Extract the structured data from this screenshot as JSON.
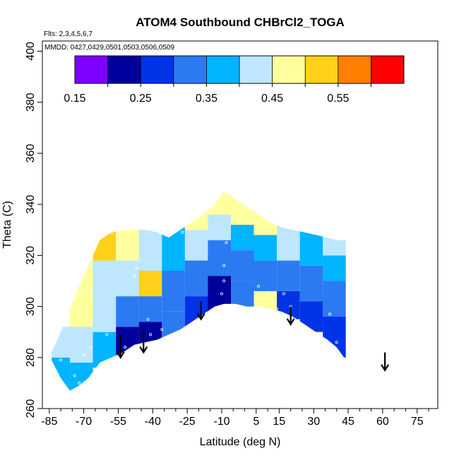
{
  "chart_data": {
    "type": "heatmap",
    "title": "ATOM4 Southbound CHBrCl2_TOGA",
    "flights_label": "Flts: 2,3,4,5,6,7",
    "dates_label": "MMDD: 0427,0429,0501,0503,0506,0509",
    "xlabel": "Latitude (deg N)",
    "ylabel": "Theta (C)",
    "xlim": [
      -88,
      84
    ],
    "ylim": [
      260,
      404
    ],
    "x_ticks": [
      -85,
      -70,
      -55,
      -40,
      -25,
      -10,
      5,
      15,
      30,
      45,
      60,
      75
    ],
    "x_minor_ticks": [
      -80,
      -75,
      -65,
      -60,
      -50,
      -45,
      -35,
      -30,
      -20,
      -15,
      -5,
      0,
      10,
      20,
      25,
      35,
      40,
      50,
      55,
      65,
      70,
      80
    ],
    "y_ticks": [
      260,
      280,
      300,
      320,
      340,
      360,
      380,
      400
    ],
    "colorbar": {
      "min": 0.15,
      "max": 0.65,
      "ticks": [
        0.15,
        0.25,
        0.35,
        0.45,
        0.55
      ],
      "tick_labels": [
        "0.15",
        "0.25",
        "0.35",
        "0.45",
        "0.55"
      ],
      "boundaries": [
        0.15,
        0.2,
        0.25,
        0.3,
        0.35,
        0.4,
        0.45,
        0.5,
        0.55,
        0.6,
        0.65
      ],
      "colors": [
        "#7f00ff",
        "#00009c",
        "#0033e6",
        "#2b7af2",
        "#00b4ff",
        "#bfe6ff",
        "#ffff9e",
        "#ffd11a",
        "#ff7f00",
        "#ff0000",
        "#9e1a1a"
      ]
    },
    "field_stops": [
      {
        "lat": -84,
        "bottom": 279,
        "top": 282
      },
      {
        "lat": -80,
        "bottom": 272,
        "top": 290
      },
      {
        "lat": -76,
        "bottom": 267,
        "top": 299
      },
      {
        "lat": -72,
        "bottom": 269,
        "top": 308
      },
      {
        "lat": -68,
        "bottom": 272,
        "top": 316
      },
      {
        "lat": -63,
        "bottom": 278,
        "top": 326
      },
      {
        "lat": -58,
        "bottom": 280,
        "top": 329
      },
      {
        "lat": -53,
        "bottom": 282,
        "top": 330
      },
      {
        "lat": -48,
        "bottom": 285,
        "top": 330
      },
      {
        "lat": -43,
        "bottom": 286,
        "top": 330
      },
      {
        "lat": -38,
        "bottom": 287,
        "top": 329
      },
      {
        "lat": -33,
        "bottom": 289,
        "top": 327
      },
      {
        "lat": -28,
        "bottom": 291,
        "top": 330
      },
      {
        "lat": -23,
        "bottom": 294,
        "top": 333
      },
      {
        "lat": -18,
        "bottom": 297,
        "top": 336
      },
      {
        "lat": -13,
        "bottom": 300,
        "top": 340
      },
      {
        "lat": -9,
        "bottom": 301,
        "top": 345
      },
      {
        "lat": -4,
        "bottom": 301,
        "top": 342
      },
      {
        "lat": 1,
        "bottom": 300,
        "top": 339
      },
      {
        "lat": 6,
        "bottom": 300,
        "top": 336
      },
      {
        "lat": 11,
        "bottom": 299,
        "top": 333
      },
      {
        "lat": 16,
        "bottom": 298,
        "top": 331
      },
      {
        "lat": 21,
        "bottom": 296,
        "top": 330
      },
      {
        "lat": 26,
        "bottom": 293,
        "top": 329
      },
      {
        "lat": 31,
        "bottom": 290,
        "top": 328
      },
      {
        "lat": 36,
        "bottom": 287,
        "top": 327
      },
      {
        "lat": 40,
        "bottom": 284,
        "top": 326
      },
      {
        "lat": 44,
        "bottom": 279,
        "top": 326
      }
    ],
    "field_cells": [
      {
        "lat": [
          -86,
          -76
        ],
        "theta": [
          266,
          280
        ],
        "value": 0.38
      },
      {
        "lat": [
          -86,
          -76
        ],
        "theta": [
          280,
          292
        ],
        "value": 0.42
      },
      {
        "lat": [
          -76,
          -66
        ],
        "theta": [
          266,
          278
        ],
        "value": 0.36
      },
      {
        "lat": [
          -76,
          -66
        ],
        "theta": [
          278,
          292
        ],
        "value": 0.4
      },
      {
        "lat": [
          -76,
          -66
        ],
        "theta": [
          292,
          306
        ],
        "value": 0.47
      },
      {
        "lat": [
          -76,
          -66
        ],
        "theta": [
          306,
          318
        ],
        "value": 0.46
      },
      {
        "lat": [
          -66,
          -56
        ],
        "theta": [
          276,
          290
        ],
        "value": 0.36
      },
      {
        "lat": [
          -66,
          -56
        ],
        "theta": [
          290,
          304
        ],
        "value": 0.44
      },
      {
        "lat": [
          -66,
          -56
        ],
        "theta": [
          304,
          318
        ],
        "value": 0.42
      },
      {
        "lat": [
          -66,
          -56
        ],
        "theta": [
          318,
          330
        ],
        "value": 0.51
      },
      {
        "lat": [
          -56,
          -46
        ],
        "theta": [
          280,
          292
        ],
        "value": 0.22
      },
      {
        "lat": [
          -56,
          -46
        ],
        "theta": [
          292,
          304
        ],
        "value": 0.3
      },
      {
        "lat": [
          -56,
          -46
        ],
        "theta": [
          304,
          318
        ],
        "value": 0.44
      },
      {
        "lat": [
          -56,
          -46
        ],
        "theta": [
          318,
          331
        ],
        "value": 0.47
      },
      {
        "lat": [
          -46,
          -36
        ],
        "theta": [
          284,
          294
        ],
        "value": 0.22
      },
      {
        "lat": [
          -46,
          -36
        ],
        "theta": [
          294,
          304
        ],
        "value": 0.31
      },
      {
        "lat": [
          -46,
          -36
        ],
        "theta": [
          304,
          314
        ],
        "value": 0.52
      },
      {
        "lat": [
          -46,
          -36
        ],
        "theta": [
          314,
          331
        ],
        "value": 0.4
      },
      {
        "lat": [
          -36,
          -26
        ],
        "theta": [
          286,
          298
        ],
        "value": 0.3
      },
      {
        "lat": [
          -36,
          -26
        ],
        "theta": [
          298,
          314
        ],
        "value": 0.33
      },
      {
        "lat": [
          -36,
          -26
        ],
        "theta": [
          314,
          331
        ],
        "value": 0.38
      },
      {
        "lat": [
          -26,
          -16
        ],
        "theta": [
          292,
          304
        ],
        "value": 0.28
      },
      {
        "lat": [
          -26,
          -16
        ],
        "theta": [
          304,
          318
        ],
        "value": 0.32
      },
      {
        "lat": [
          -26,
          -16
        ],
        "theta": [
          318,
          330
        ],
        "value": 0.4
      },
      {
        "lat": [
          -26,
          -16
        ],
        "theta": [
          330,
          338
        ],
        "value": 0.46
      },
      {
        "lat": [
          -16,
          -6
        ],
        "theta": [
          298,
          312
        ],
        "value": 0.2
      },
      {
        "lat": [
          -16,
          -6
        ],
        "theta": [
          312,
          326
        ],
        "value": 0.3
      },
      {
        "lat": [
          -16,
          -6
        ],
        "theta": [
          326,
          336
        ],
        "value": 0.4
      },
      {
        "lat": [
          -16,
          -6
        ],
        "theta": [
          336,
          346
        ],
        "value": 0.47
      },
      {
        "lat": [
          -6,
          4
        ],
        "theta": [
          299,
          310
        ],
        "value": 0.33
      },
      {
        "lat": [
          -6,
          4
        ],
        "theta": [
          310,
          322
        ],
        "value": 0.3
      },
      {
        "lat": [
          -6,
          4
        ],
        "theta": [
          322,
          332
        ],
        "value": 0.36
      },
      {
        "lat": [
          -6,
          4
        ],
        "theta": [
          332,
          343
        ],
        "value": 0.48
      },
      {
        "lat": [
          4,
          14
        ],
        "theta": [
          298,
          306
        ],
        "value": 0.47
      },
      {
        "lat": [
          4,
          14
        ],
        "theta": [
          306,
          318
        ],
        "value": 0.34
      },
      {
        "lat": [
          4,
          14
        ],
        "theta": [
          318,
          328
        ],
        "value": 0.37
      },
      {
        "lat": [
          4,
          14
        ],
        "theta": [
          328,
          337
        ],
        "value": 0.47
      },
      {
        "lat": [
          14,
          24
        ],
        "theta": [
          295,
          306
        ],
        "value": 0.25
      },
      {
        "lat": [
          14,
          24
        ],
        "theta": [
          306,
          318
        ],
        "value": 0.31
      },
      {
        "lat": [
          14,
          24
        ],
        "theta": [
          318,
          332
        ],
        "value": 0.43
      },
      {
        "lat": [
          24,
          34
        ],
        "theta": [
          290,
          302
        ],
        "value": 0.26
      },
      {
        "lat": [
          24,
          34
        ],
        "theta": [
          302,
          316
        ],
        "value": 0.31
      },
      {
        "lat": [
          24,
          34
        ],
        "theta": [
          316,
          330
        ],
        "value": 0.39
      },
      {
        "lat": [
          34,
          44
        ],
        "theta": [
          280,
          296
        ],
        "value": 0.29
      },
      {
        "lat": [
          34,
          44
        ],
        "theta": [
          296,
          310
        ],
        "value": 0.32
      },
      {
        "lat": [
          34,
          44
        ],
        "theta": [
          310,
          320
        ],
        "value": 0.37
      },
      {
        "lat": [
          34,
          44
        ],
        "theta": [
          320,
          327
        ],
        "value": 0.42
      }
    ],
    "sample_points": [
      {
        "lat": -72,
        "theta": 270
      },
      {
        "lat": -74,
        "theta": 273
      },
      {
        "lat": -70,
        "theta": 281
      },
      {
        "lat": -67,
        "theta": 284
      },
      {
        "lat": -80,
        "theta": 279
      },
      {
        "lat": -58,
        "theta": 329
      },
      {
        "lat": -60,
        "theta": 289
      },
      {
        "lat": -52,
        "theta": 284
      },
      {
        "lat": -45,
        "theta": 285
      },
      {
        "lat": -41,
        "theta": 289
      },
      {
        "lat": -36,
        "theta": 291
      },
      {
        "lat": -42,
        "theta": 295
      },
      {
        "lat": -48,
        "theta": 312
      },
      {
        "lat": -47,
        "theta": 315
      },
      {
        "lat": -27,
        "theta": 329
      },
      {
        "lat": -8,
        "theta": 325
      },
      {
        "lat": -9,
        "theta": 316
      },
      {
        "lat": -9,
        "theta": 310
      },
      {
        "lat": -10,
        "theta": 305
      },
      {
        "lat": 5,
        "theta": 304
      },
      {
        "lat": 6,
        "theta": 308
      },
      {
        "lat": 10,
        "theta": 305
      },
      {
        "lat": 12,
        "theta": 302
      },
      {
        "lat": 14,
        "theta": 299
      },
      {
        "lat": 17,
        "theta": 305
      },
      {
        "lat": 20,
        "theta": 300
      },
      {
        "lat": 37,
        "theta": 297
      },
      {
        "lat": 40,
        "theta": 286
      },
      {
        "lat": 44,
        "theta": 279
      }
    ],
    "arrows": [
      {
        "lat": -54,
        "theta_top": 289,
        "theta_bottom": 280
      },
      {
        "lat": -44,
        "theta_top": 291,
        "theta_bottom": 282
      },
      {
        "lat": -19,
        "theta_top": 302,
        "theta_bottom": 295
      },
      {
        "lat": 20,
        "theta_top": 300,
        "theta_bottom": 293
      },
      {
        "lat": 61,
        "theta_top": 282,
        "theta_bottom": 275
      }
    ]
  }
}
